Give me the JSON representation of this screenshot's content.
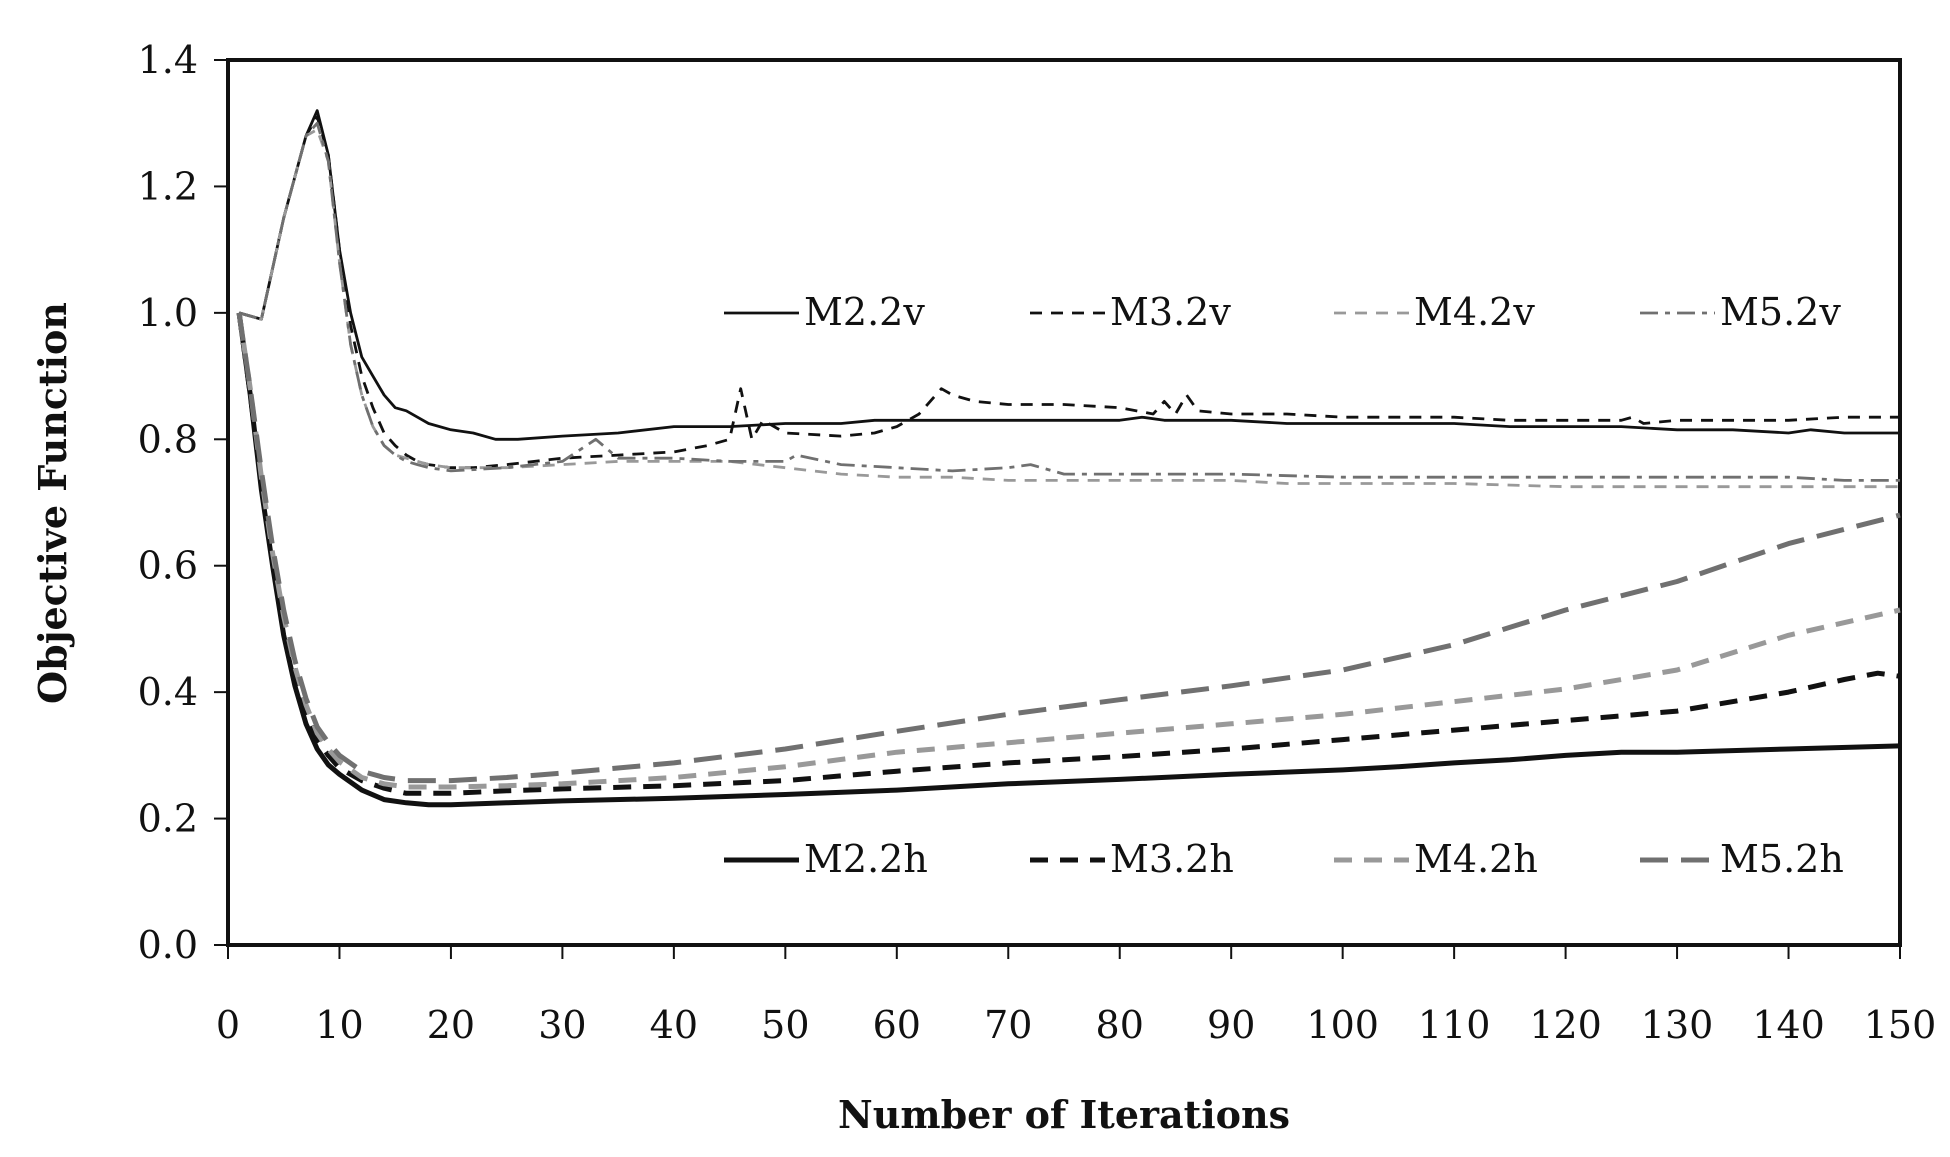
{
  "chart_data": {
    "type": "line",
    "xlabel": "Number of Iterations",
    "ylabel": "Objective Function",
    "xlim": [
      0,
      150
    ],
    "ylim": [
      0,
      1.4
    ],
    "x_ticks": [
      0,
      10,
      20,
      30,
      40,
      50,
      60,
      70,
      80,
      90,
      100,
      110,
      120,
      130,
      140,
      150
    ],
    "y_ticks": [
      "0.0",
      "0.2",
      "0.4",
      "0.6",
      "0.8",
      "1.0",
      "1.2",
      "1.4"
    ],
    "grid": false,
    "legend_groups": [
      {
        "placement": "upper-middle",
        "entries": [
          "M2.2v",
          "M3.2v",
          "M4.2v",
          "M5.2v"
        ]
      },
      {
        "placement": "lower-middle",
        "entries": [
          "M2.2h",
          "M3.2h",
          "M4.2h",
          "M5.2h"
        ]
      }
    ],
    "series": [
      {
        "name": "M2.2v",
        "color": "#111111",
        "dash": "solid",
        "weight": "thin",
        "x": [
          1,
          3,
          5,
          7,
          8,
          9,
          10,
          11,
          12,
          13,
          14,
          15,
          16,
          17,
          18,
          20,
          22,
          24,
          26,
          30,
          35,
          40,
          45,
          50,
          55,
          58,
          60,
          62,
          65,
          70,
          75,
          80,
          82,
          84,
          86,
          90,
          95,
          100,
          105,
          110,
          115,
          120,
          125,
          130,
          135,
          140,
          142,
          145,
          150
        ],
        "values": [
          1.0,
          0.99,
          1.15,
          1.28,
          1.32,
          1.25,
          1.1,
          1.0,
          0.93,
          0.9,
          0.87,
          0.85,
          0.845,
          0.835,
          0.825,
          0.815,
          0.81,
          0.8,
          0.8,
          0.805,
          0.81,
          0.82,
          0.82,
          0.825,
          0.825,
          0.83,
          0.83,
          0.83,
          0.83,
          0.83,
          0.83,
          0.83,
          0.835,
          0.83,
          0.83,
          0.83,
          0.825,
          0.825,
          0.825,
          0.825,
          0.82,
          0.82,
          0.82,
          0.815,
          0.815,
          0.81,
          0.815,
          0.81,
          0.81
        ]
      },
      {
        "name": "M3.2v",
        "color": "#111111",
        "dash": "dashed",
        "weight": "thin",
        "x": [
          1,
          3,
          5,
          7,
          8,
          9,
          10,
          11,
          12,
          13,
          14,
          15,
          16,
          17,
          18,
          20,
          22,
          25,
          30,
          35,
          40,
          43,
          45,
          46,
          47,
          48,
          50,
          55,
          58,
          60,
          62,
          64,
          65,
          67,
          70,
          75,
          80,
          83,
          84,
          85,
          86,
          87,
          90,
          95,
          100,
          105,
          110,
          115,
          120,
          125,
          126,
          127,
          130,
          135,
          140,
          145,
          150
        ],
        "values": [
          1.0,
          0.99,
          1.15,
          1.28,
          1.31,
          1.25,
          1.1,
          0.98,
          0.9,
          0.85,
          0.81,
          0.79,
          0.775,
          0.765,
          0.76,
          0.755,
          0.755,
          0.76,
          0.77,
          0.775,
          0.78,
          0.79,
          0.8,
          0.88,
          0.8,
          0.83,
          0.81,
          0.805,
          0.81,
          0.82,
          0.84,
          0.88,
          0.87,
          0.86,
          0.855,
          0.855,
          0.85,
          0.84,
          0.86,
          0.84,
          0.87,
          0.845,
          0.84,
          0.84,
          0.835,
          0.835,
          0.835,
          0.83,
          0.83,
          0.83,
          0.835,
          0.825,
          0.83,
          0.83,
          0.83,
          0.835,
          0.835
        ]
      },
      {
        "name": "M4.2v",
        "color": "#999999",
        "dash": "dashed",
        "weight": "thin",
        "x": [
          1,
          3,
          5,
          7,
          8,
          9,
          10,
          11,
          12,
          13,
          14,
          15,
          16,
          17,
          18,
          20,
          25,
          30,
          35,
          40,
          45,
          50,
          55,
          60,
          65,
          70,
          75,
          80,
          85,
          90,
          95,
          100,
          110,
          120,
          130,
          140,
          150
        ],
        "values": [
          1.0,
          0.99,
          1.15,
          1.28,
          1.29,
          1.24,
          1.08,
          0.95,
          0.87,
          0.82,
          0.79,
          0.775,
          0.77,
          0.765,
          0.76,
          0.755,
          0.755,
          0.76,
          0.765,
          0.765,
          0.765,
          0.755,
          0.745,
          0.74,
          0.74,
          0.735,
          0.735,
          0.735,
          0.735,
          0.735,
          0.73,
          0.73,
          0.73,
          0.725,
          0.725,
          0.725,
          0.725
        ]
      },
      {
        "name": "M5.2v",
        "color": "#707070",
        "dash": "dashdot",
        "weight": "thin",
        "x": [
          1,
          3,
          5,
          7,
          8,
          9,
          10,
          11,
          12,
          13,
          14,
          15,
          16,
          17,
          18,
          20,
          25,
          30,
          33,
          35,
          40,
          45,
          50,
          51,
          55,
          60,
          65,
          70,
          72,
          75,
          80,
          85,
          90,
          100,
          110,
          120,
          130,
          140,
          145,
          150
        ],
        "values": [
          1.0,
          0.99,
          1.15,
          1.28,
          1.3,
          1.24,
          1.08,
          0.95,
          0.87,
          0.82,
          0.79,
          0.775,
          0.765,
          0.76,
          0.755,
          0.75,
          0.755,
          0.765,
          0.8,
          0.77,
          0.77,
          0.765,
          0.765,
          0.775,
          0.76,
          0.755,
          0.75,
          0.755,
          0.76,
          0.745,
          0.745,
          0.745,
          0.745,
          0.74,
          0.74,
          0.74,
          0.74,
          0.74,
          0.735,
          0.735
        ]
      },
      {
        "name": "M2.2h",
        "color": "#111111",
        "dash": "solid",
        "weight": "thick",
        "x": [
          1,
          2,
          3,
          4,
          5,
          6,
          7,
          8,
          9,
          10,
          12,
          14,
          16,
          18,
          20,
          25,
          30,
          40,
          50,
          60,
          70,
          80,
          90,
          100,
          105,
          110,
          115,
          120,
          125,
          130,
          140,
          150
        ],
        "values": [
          1.0,
          0.87,
          0.72,
          0.6,
          0.49,
          0.41,
          0.35,
          0.31,
          0.285,
          0.27,
          0.245,
          0.23,
          0.225,
          0.222,
          0.222,
          0.225,
          0.228,
          0.232,
          0.238,
          0.245,
          0.255,
          0.262,
          0.27,
          0.277,
          0.282,
          0.288,
          0.293,
          0.3,
          0.305,
          0.305,
          0.31,
          0.315
        ]
      },
      {
        "name": "M3.2h",
        "color": "#111111",
        "dash": "dashed",
        "weight": "thick",
        "x": [
          1,
          2,
          3,
          4,
          5,
          6,
          7,
          8,
          9,
          10,
          12,
          14,
          16,
          18,
          20,
          25,
          30,
          40,
          50,
          60,
          70,
          80,
          90,
          100,
          110,
          120,
          130,
          140,
          145,
          148,
          150
        ],
        "values": [
          1.0,
          0.87,
          0.73,
          0.61,
          0.51,
          0.43,
          0.37,
          0.325,
          0.3,
          0.28,
          0.26,
          0.248,
          0.24,
          0.24,
          0.24,
          0.244,
          0.247,
          0.252,
          0.26,
          0.275,
          0.288,
          0.298,
          0.31,
          0.325,
          0.34,
          0.355,
          0.37,
          0.4,
          0.42,
          0.43,
          0.425
        ]
      },
      {
        "name": "M4.2h",
        "color": "#999999",
        "dash": "dashed",
        "weight": "thick",
        "x": [
          1,
          2,
          3,
          4,
          5,
          6,
          7,
          8,
          9,
          10,
          12,
          14,
          16,
          18,
          20,
          25,
          30,
          40,
          50,
          60,
          70,
          80,
          90,
          100,
          110,
          120,
          130,
          140,
          150
        ],
        "values": [
          1.0,
          0.88,
          0.74,
          0.62,
          0.52,
          0.44,
          0.38,
          0.335,
          0.31,
          0.29,
          0.265,
          0.255,
          0.25,
          0.25,
          0.25,
          0.252,
          0.255,
          0.265,
          0.282,
          0.305,
          0.32,
          0.335,
          0.35,
          0.365,
          0.385,
          0.405,
          0.435,
          0.49,
          0.53
        ]
      },
      {
        "name": "M5.2h",
        "color": "#707070",
        "dash": "longdash",
        "weight": "thick",
        "x": [
          1,
          2,
          3,
          4,
          5,
          6,
          7,
          8,
          9,
          10,
          12,
          14,
          16,
          18,
          20,
          25,
          30,
          40,
          50,
          60,
          70,
          80,
          90,
          100,
          110,
          120,
          130,
          140,
          150
        ],
        "values": [
          1.0,
          0.88,
          0.75,
          0.63,
          0.53,
          0.45,
          0.39,
          0.345,
          0.32,
          0.3,
          0.275,
          0.265,
          0.26,
          0.26,
          0.26,
          0.265,
          0.272,
          0.288,
          0.31,
          0.338,
          0.365,
          0.388,
          0.41,
          0.435,
          0.475,
          0.53,
          0.575,
          0.635,
          0.68
        ]
      }
    ]
  }
}
